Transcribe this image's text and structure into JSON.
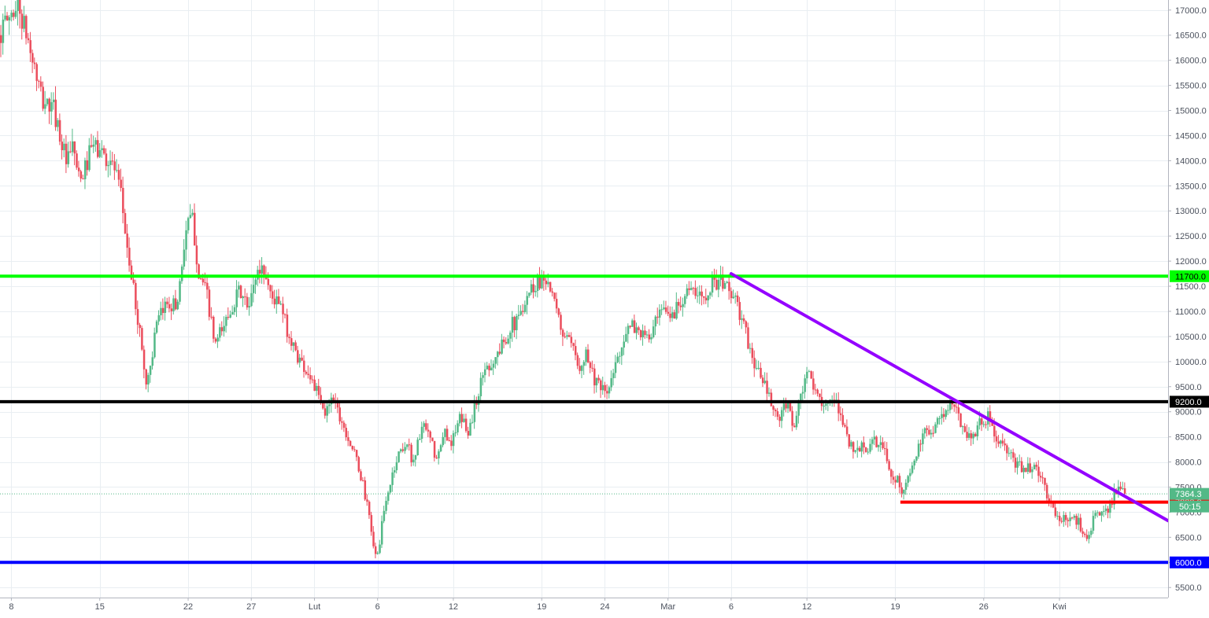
{
  "chart_data": {
    "type": "candlestick",
    "instrument_note": "",
    "x_tick_labels": [
      "8",
      "15",
      "22",
      "27",
      "Lut",
      "6",
      "12",
      "19",
      "24",
      "Mar",
      "6",
      "12",
      "19",
      "26",
      "Kwi"
    ],
    "x_tick_days": [
      7,
      14,
      21,
      26,
      31,
      36,
      42,
      49,
      54,
      59,
      64,
      70,
      77,
      84,
      90
    ],
    "y_ticks": [
      5500,
      6000,
      6500,
      7000,
      7500,
      8000,
      8500,
      9000,
      9500,
      10000,
      10500,
      11000,
      11500,
      12000,
      12500,
      13000,
      13500,
      14000,
      14500,
      15000,
      15500,
      16000,
      16500,
      17000
    ],
    "ylim": [
      5300,
      17200
    ],
    "xlim_days": [
      6.1,
      98.6
    ],
    "grid": true,
    "colors": {
      "up": "#53b987",
      "down": "#eb4d5c",
      "support_top": "#00ff00",
      "support_mid": "#000000",
      "support_bottom": "#0000ff",
      "minor_level": "#ff0000",
      "trendline": "#9400ff",
      "last_price": "#53b987"
    },
    "horizontal_levels": [
      {
        "value": 11700,
        "label": "11700.0",
        "color": "#00ff00",
        "from_day": 6.1
      },
      {
        "value": 9200,
        "label": "9200.0",
        "color": "#000000",
        "from_day": 6.1
      },
      {
        "value": 6000,
        "label": "6000.0",
        "color": "#0000ff",
        "from_day": 6.1
      },
      {
        "value": 7200,
        "label": "7200.0",
        "color": "#ff0000",
        "from_day": 77.4
      }
    ],
    "trendline": {
      "from": {
        "day": 64,
        "value": 11750
      },
      "to": {
        "day": 98.6,
        "value": 6830
      }
    },
    "current_price": {
      "value": 7364.3,
      "label": "7364.3",
      "countdown": "50:15"
    },
    "price_path": [
      [
        6.1,
        16500
      ],
      [
        7,
        16900
      ],
      [
        7.6,
        17100
      ],
      [
        8.5,
        16300
      ],
      [
        9.5,
        15200
      ],
      [
        10.5,
        15000
      ],
      [
        11.5,
        13900
      ],
      [
        12,
        14300
      ],
      [
        12.5,
        13500
      ],
      [
        13.5,
        14300
      ],
      [
        14.3,
        14150
      ],
      [
        15.2,
        13900
      ],
      [
        15.8,
        13250
      ],
      [
        16.4,
        12000
      ],
      [
        17.2,
        10700
      ],
      [
        17.8,
        9500
      ],
      [
        18.6,
        10700
      ],
      [
        19.4,
        11200
      ],
      [
        20.2,
        11100
      ],
      [
        20.9,
        12600
      ],
      [
        21.4,
        12900
      ],
      [
        21.9,
        11800
      ],
      [
        22.6,
        11300
      ],
      [
        23.2,
        10300
      ],
      [
        23.9,
        10700
      ],
      [
        24.6,
        11150
      ],
      [
        25.2,
        11400
      ],
      [
        25.9,
        11000
      ],
      [
        26.4,
        11700
      ],
      [
        27,
        11900
      ],
      [
        27.7,
        11300
      ],
      [
        28.4,
        11100
      ],
      [
        29.2,
        10400
      ],
      [
        30,
        10000
      ],
      [
        30.8,
        9700
      ],
      [
        31.4,
        9300
      ],
      [
        31.9,
        8900
      ],
      [
        32.5,
        9400
      ],
      [
        33,
        9000
      ],
      [
        33.6,
        8600
      ],
      [
        34.2,
        8200
      ],
      [
        34.9,
        7600
      ],
      [
        35.5,
        6800
      ],
      [
        36,
        6000
      ],
      [
        36.6,
        7000
      ],
      [
        37.2,
        7700
      ],
      [
        37.8,
        8200
      ],
      [
        38.4,
        8400
      ],
      [
        38.9,
        8000
      ],
      [
        39.6,
        8700
      ],
      [
        40.2,
        8500
      ],
      [
        40.8,
        8000
      ],
      [
        41.4,
        8600
      ],
      [
        42,
        8400
      ],
      [
        42.7,
        8900
      ],
      [
        43.3,
        8600
      ],
      [
        44,
        9300
      ],
      [
        44.6,
        9900
      ],
      [
        45.3,
        10000
      ],
      [
        45.9,
        10300
      ],
      [
        46.6,
        10700
      ],
      [
        47.2,
        10800
      ],
      [
        47.8,
        11300
      ],
      [
        48.4,
        11500
      ],
      [
        49.1,
        11650
      ],
      [
        49.5,
        11700
      ],
      [
        50,
        11200
      ],
      [
        50.7,
        10600
      ],
      [
        51.4,
        10300
      ],
      [
        52,
        9900
      ],
      [
        52.6,
        10200
      ],
      [
        53.2,
        9700
      ],
      [
        53.8,
        9400
      ],
      [
        54.4,
        9400
      ],
      [
        55,
        10000
      ],
      [
        55.6,
        10500
      ],
      [
        56.3,
        10700
      ],
      [
        56.9,
        10600
      ],
      [
        57.5,
        10400
      ],
      [
        58.2,
        10800
      ],
      [
        58.8,
        11000
      ],
      [
        59.4,
        10900
      ],
      [
        60,
        11200
      ],
      [
        60.6,
        11450
      ],
      [
        61.3,
        11300
      ],
      [
        61.9,
        11300
      ],
      [
        62.5,
        11550
      ],
      [
        63,
        11600
      ],
      [
        63.4,
        11550
      ],
      [
        63.9,
        11500
      ],
      [
        64.4,
        11200
      ],
      [
        65,
        10800
      ],
      [
        65.6,
        10200
      ],
      [
        66.2,
        9800
      ],
      [
        66.8,
        9500
      ],
      [
        67.3,
        9100
      ],
      [
        67.9,
        8800
      ],
      [
        68.5,
        9200
      ],
      [
        69.1,
        8700
      ],
      [
        69.7,
        9400
      ],
      [
        70.3,
        9800
      ],
      [
        70.8,
        9300
      ],
      [
        71.3,
        9250
      ],
      [
        71.9,
        9150
      ],
      [
        72.5,
        9100
      ],
      [
        73.1,
        8700
      ],
      [
        73.7,
        8200
      ],
      [
        74.3,
        8300
      ],
      [
        74.9,
        8250
      ],
      [
        75.5,
        8400
      ],
      [
        76.1,
        8300
      ],
      [
        76.7,
        7800
      ],
      [
        77.3,
        7600
      ],
      [
        77.8,
        7400
      ],
      [
        78.4,
        7900
      ],
      [
        79,
        8300
      ],
      [
        79.6,
        8650
      ],
      [
        80.2,
        8700
      ],
      [
        80.8,
        8950
      ],
      [
        81.4,
        9100
      ],
      [
        82,
        9000
      ],
      [
        82.6,
        8600
      ],
      [
        83.2,
        8500
      ],
      [
        83.8,
        8800
      ],
      [
        84.4,
        8900
      ],
      [
        85,
        8500
      ],
      [
        85.6,
        8300
      ],
      [
        86.2,
        8100
      ],
      [
        86.8,
        7900
      ],
      [
        87.4,
        7900
      ],
      [
        88,
        7900
      ],
      [
        88.6,
        7700
      ],
      [
        89.2,
        7300
      ],
      [
        89.8,
        6900
      ],
      [
        90.4,
        6850
      ],
      [
        91,
        6900
      ],
      [
        91.6,
        6800
      ],
      [
        92.2,
        6500
      ],
      [
        92.8,
        6850
      ],
      [
        93.4,
        7000
      ],
      [
        94,
        7100
      ],
      [
        94.6,
        7450
      ],
      [
        95.2,
        7364
      ]
    ]
  }
}
